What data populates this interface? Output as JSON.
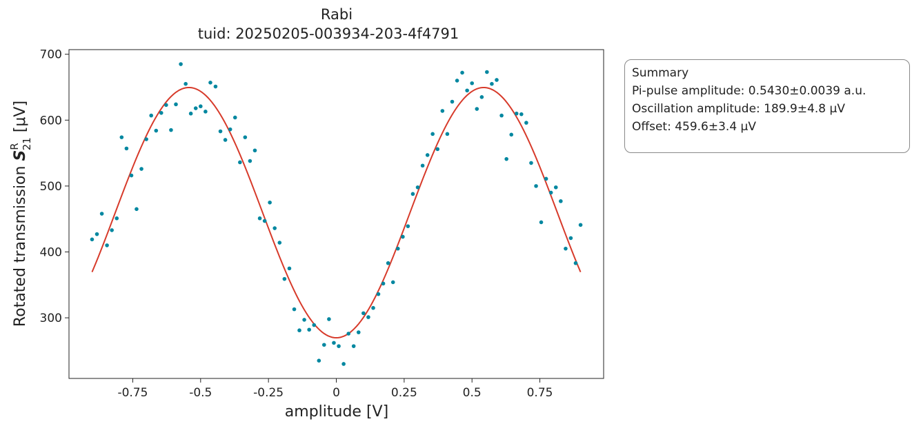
{
  "chart_data": {
    "type": "scatter",
    "title": "Rabi",
    "subtitle": "tuid: 20250205-003934-203-4f4791",
    "xlabel": "amplitude [V]",
    "ylabel_prefix": "Rotated transmission ",
    "ylabel_symbol": "S",
    "ylabel_sup": "R",
    "ylabel_sub": "21",
    "ylabel_suffix": " [μV]",
    "xlim": [
      -0.985,
      0.985
    ],
    "ylim": [
      208,
      707
    ],
    "xticks": [
      -0.75,
      -0.5,
      -0.25,
      0,
      0.25,
      0.5,
      0.75
    ],
    "xtick_labels": [
      "-0.75",
      "-0.5",
      "-0.25",
      "0",
      "0.25",
      "0.5",
      "0.75"
    ],
    "yticks": [
      300,
      400,
      500,
      600,
      700
    ],
    "ytick_labels": [
      "300",
      "400",
      "500",
      "600",
      "700"
    ],
    "grid": false,
    "marker_color": "#0087a0",
    "fit_color": "#d73a2a",
    "series": [
      {
        "kind": "points",
        "x": [
          -0.9,
          -0.882,
          -0.864,
          -0.845,
          -0.827,
          -0.809,
          -0.791,
          -0.773,
          -0.755,
          -0.736,
          -0.718,
          -0.7,
          -0.682,
          -0.664,
          -0.645,
          -0.627,
          -0.609,
          -0.591,
          -0.573,
          -0.555,
          -0.536,
          -0.518,
          -0.5,
          -0.482,
          -0.464,
          -0.445,
          -0.427,
          -0.409,
          -0.391,
          -0.373,
          -0.355,
          -0.336,
          -0.318,
          -0.3,
          -0.282,
          -0.264,
          -0.245,
          -0.227,
          -0.209,
          -0.191,
          -0.173,
          -0.155,
          -0.136,
          -0.118,
          -0.1,
          -0.082,
          -0.064,
          -0.045,
          -0.027,
          -0.009,
          0.009,
          0.027,
          0.045,
          0.064,
          0.082,
          0.1,
          0.118,
          0.136,
          0.155,
          0.173,
          0.191,
          0.209,
          0.227,
          0.245,
          0.264,
          0.282,
          0.3,
          0.318,
          0.336,
          0.355,
          0.373,
          0.391,
          0.409,
          0.427,
          0.445,
          0.464,
          0.482,
          0.5,
          0.518,
          0.536,
          0.555,
          0.573,
          0.591,
          0.609,
          0.627,
          0.645,
          0.664,
          0.682,
          0.7,
          0.718,
          0.736,
          0.755,
          0.773,
          0.791,
          0.809,
          0.827,
          0.845,
          0.864,
          0.882,
          0.9
        ],
        "y": [
          419,
          427,
          458,
          410,
          433,
          451,
          574,
          557,
          516,
          465,
          526,
          571,
          607,
          584,
          611,
          623,
          585,
          624,
          685,
          655,
          610,
          618,
          621,
          613,
          657,
          651,
          583,
          570,
          586,
          604,
          536,
          574,
          538,
          554,
          451,
          447,
          475,
          436,
          414,
          359,
          375,
          313,
          281,
          297,
          282,
          289,
          235,
          259,
          298,
          262,
          257,
          230,
          276,
          257,
          278,
          307,
          301,
          315,
          336,
          352,
          383,
          354,
          405,
          423,
          439,
          488,
          498,
          531,
          547,
          579,
          556,
          614,
          579,
          628,
          660,
          672,
          645,
          656,
          617,
          635,
          673,
          655,
          661,
          607,
          541,
          578,
          610,
          609,
          596,
          535,
          500,
          445,
          511,
          490,
          498,
          477,
          405,
          421,
          383,
          441
        ]
      },
      {
        "kind": "fit",
        "name": "",
        "pi_pulse_amplitude": 0.543,
        "oscillation_amplitude": 189.9,
        "offset": 459.6,
        "x_range": [
          -0.9,
          0.9
        ]
      }
    ]
  },
  "summary": {
    "title": "Summary",
    "lines": [
      "Pi-pulse amplitude: 0.5430±0.0039 a.u.",
      "Oscillation amplitude: 189.9±4.8 μV",
      "Offset: 459.6±3.4 μV"
    ]
  }
}
